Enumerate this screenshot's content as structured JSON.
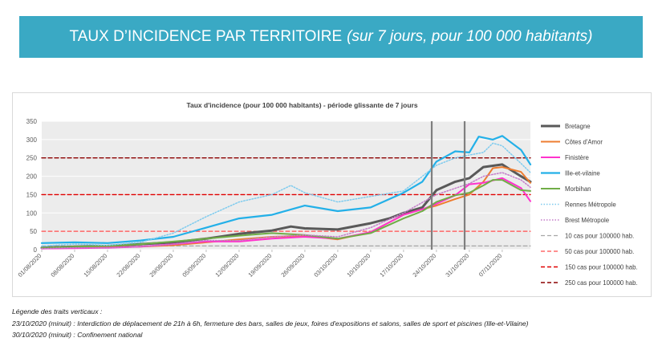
{
  "banner": {
    "title": "TAUX D’INCIDENCE PAR TERRITOIRE",
    "subtitle": "(sur 7 jours, pour 100 000 habitants)",
    "color": "#3aa9c4"
  },
  "chart_data": {
    "type": "line",
    "title": "Taux d'incidence (pour 100 000 habitants) - période glissante de 7 jours",
    "xlabel": "",
    "ylabel": "",
    "ylim": [
      0,
      350
    ],
    "yticks": [
      0,
      50,
      100,
      150,
      200,
      250,
      300,
      350
    ],
    "xlim": [
      "01/08/2020",
      "13/11/2020"
    ],
    "xticks": [
      "01/08/2020",
      "08/08/2020",
      "15/08/2020",
      "22/08/2020",
      "29/08/2020",
      "05/09/2020",
      "12/09/2020",
      "19/09/2020",
      "26/09/2020",
      "03/10/2020",
      "10/10/2020",
      "17/10/2020",
      "24/10/2020",
      "31/10/2020",
      "07/11/2020"
    ],
    "grid": "horizontal",
    "legend_position": "right",
    "vertical_markers": [
      "23/10/2020",
      "30/10/2020"
    ],
    "series": [
      {
        "name": "Bretagne",
        "color": "#595959",
        "style": "solid",
        "width": 3,
        "x": [
          "01/08/2020",
          "08/08/2020",
          "15/08/2020",
          "22/08/2020",
          "29/08/2020",
          "05/09/2020",
          "12/09/2020",
          "19/09/2020",
          "23/09/2020",
          "26/09/2020",
          "03/10/2020",
          "10/10/2020",
          "14/10/2020",
          "17/10/2020",
          "21/10/2020",
          "24/10/2020",
          "28/10/2020",
          "31/10/2020",
          "03/11/2020",
          "07/11/2020",
          "11/11/2020",
          "13/11/2020"
        ],
        "y": [
          5,
          8,
          10,
          15,
          20,
          30,
          43,
          52,
          63,
          58,
          55,
          72,
          85,
          100,
          115,
          162,
          185,
          195,
          225,
          232,
          200,
          185
        ]
      },
      {
        "name": "Côtes d'Amor",
        "color": "#ed7d31",
        "style": "solid",
        "width": 2,
        "x": [
          "01/08/2020",
          "08/08/2020",
          "15/08/2020",
          "22/08/2020",
          "29/08/2020",
          "05/09/2020",
          "12/09/2020",
          "19/09/2020",
          "26/09/2020",
          "03/10/2020",
          "10/10/2020",
          "17/10/2020",
          "21/10/2020",
          "24/10/2020",
          "28/10/2020",
          "31/10/2020",
          "03/11/2020",
          "05/11/2020",
          "07/11/2020",
          "11/11/2020",
          "13/11/2020"
        ],
        "y": [
          3,
          5,
          6,
          8,
          12,
          20,
          28,
          35,
          38,
          28,
          48,
          95,
          110,
          120,
          138,
          150,
          185,
          222,
          225,
          212,
          182
        ]
      },
      {
        "name": "Finistère",
        "color": "#ff33cc",
        "style": "solid",
        "width": 2,
        "x": [
          "01/08/2020",
          "08/08/2020",
          "15/08/2020",
          "22/08/2020",
          "29/08/2020",
          "05/09/2020",
          "12/09/2020",
          "19/09/2020",
          "26/09/2020",
          "03/10/2020",
          "10/10/2020",
          "17/10/2020",
          "21/10/2020",
          "24/10/2020",
          "28/10/2020",
          "31/10/2020",
          "03/11/2020",
          "07/11/2020",
          "11/11/2020",
          "13/11/2020"
        ],
        "y": [
          3,
          4,
          5,
          8,
          15,
          22,
          22,
          30,
          35,
          30,
          48,
          95,
          110,
          125,
          148,
          178,
          182,
          195,
          168,
          132
        ]
      },
      {
        "name": "Ille-et-vilaine",
        "color": "#23b0e8",
        "style": "solid",
        "width": 2.2,
        "x": [
          "01/08/2020",
          "08/08/2020",
          "15/08/2020",
          "22/08/2020",
          "29/08/2020",
          "05/09/2020",
          "12/09/2020",
          "19/09/2020",
          "26/09/2020",
          "03/10/2020",
          "10/10/2020",
          "17/10/2020",
          "21/10/2020",
          "24/10/2020",
          "28/10/2020",
          "31/10/2020",
          "02/11/2020",
          "05/11/2020",
          "07/11/2020",
          "11/11/2020",
          "13/11/2020"
        ],
        "y": [
          18,
          20,
          18,
          25,
          35,
          60,
          85,
          95,
          120,
          105,
          115,
          155,
          185,
          240,
          268,
          265,
          308,
          300,
          310,
          272,
          232
        ]
      },
      {
        "name": "Morbihan",
        "color": "#70ad47",
        "style": "solid",
        "width": 2,
        "x": [
          "01/08/2020",
          "08/08/2020",
          "15/08/2020",
          "22/08/2020",
          "29/08/2020",
          "05/09/2020",
          "12/09/2020",
          "19/09/2020",
          "26/09/2020",
          "03/10/2020",
          "10/10/2020",
          "17/10/2020",
          "21/10/2020",
          "24/10/2020",
          "28/10/2020",
          "31/10/2020",
          "03/11/2020",
          "05/11/2020",
          "07/11/2020",
          "11/11/2020",
          "13/11/2020"
        ],
        "y": [
          5,
          8,
          10,
          15,
          22,
          30,
          38,
          45,
          40,
          30,
          45,
          85,
          105,
          130,
          148,
          155,
          175,
          190,
          190,
          162,
          160
        ]
      },
      {
        "name": "Rennes Métropole",
        "color": "#7fcbee",
        "style": "dotted",
        "width": 1.5,
        "x": [
          "01/08/2020",
          "08/08/2020",
          "15/08/2020",
          "22/08/2020",
          "29/08/2020",
          "05/09/2020",
          "12/09/2020",
          "19/09/2020",
          "23/09/2020",
          "26/09/2020",
          "03/10/2020",
          "10/10/2020",
          "17/10/2020",
          "24/10/2020",
          "28/10/2020",
          "31/10/2020",
          "03/11/2020",
          "05/11/2020",
          "07/11/2020",
          "11/11/2020",
          "13/11/2020"
        ],
        "y": [
          10,
          15,
          12,
          20,
          45,
          90,
          130,
          150,
          175,
          155,
          130,
          145,
          160,
          230,
          250,
          258,
          265,
          290,
          283,
          235,
          210
        ]
      },
      {
        "name": "Brest Métropole",
        "color": "#c47cc9",
        "style": "dotted",
        "width": 1.5,
        "x": [
          "01/08/2020",
          "08/08/2020",
          "15/08/2020",
          "22/08/2020",
          "29/08/2020",
          "05/09/2020",
          "12/09/2020",
          "19/09/2020",
          "26/09/2020",
          "03/10/2020",
          "10/10/2020",
          "17/10/2020",
          "24/10/2020",
          "31/10/2020",
          "03/11/2020",
          "07/11/2020",
          "11/11/2020",
          "13/11/2020"
        ],
        "y": [
          3,
          5,
          5,
          8,
          15,
          25,
          25,
          35,
          40,
          35,
          60,
          100,
          150,
          180,
          200,
          210,
          190,
          170
        ]
      },
      {
        "name": "10 cas pour 100000 hab.",
        "color": "#a6a6a6",
        "style": "dashed",
        "width": 1.2,
        "x": [
          "01/08/2020",
          "13/11/2020"
        ],
        "y": [
          10,
          10
        ]
      },
      {
        "name": "50 cas pour 100000 hab.",
        "color": "#ff4c4c",
        "style": "dashed",
        "width": 1.2,
        "x": [
          "01/08/2020",
          "13/11/2020"
        ],
        "y": [
          50,
          50
        ]
      },
      {
        "name": "150 cas pour 100000 hab.",
        "color": "#e00000",
        "style": "dashed",
        "width": 1.4,
        "x": [
          "01/08/2020",
          "13/11/2020"
        ],
        "y": [
          150,
          150
        ]
      },
      {
        "name": "250 cas pour 100000 hab.",
        "color": "#8b0000",
        "style": "dashed",
        "width": 1.4,
        "x": [
          "01/08/2020",
          "13/11/2020"
        ],
        "y": [
          250,
          250
        ]
      }
    ]
  },
  "notes": {
    "heading": "Légende des traits verticaux :",
    "line1": "23/10/2020 (minuit) : Interdiction de déplacement de 21h à 6h, fermeture des bars, salles de jeux, foires d'expositions et salons, salles de sport et piscines (Ille-et-Vilaine)",
    "line2": "30/10/2020 (minuit) : Confinement national"
  }
}
